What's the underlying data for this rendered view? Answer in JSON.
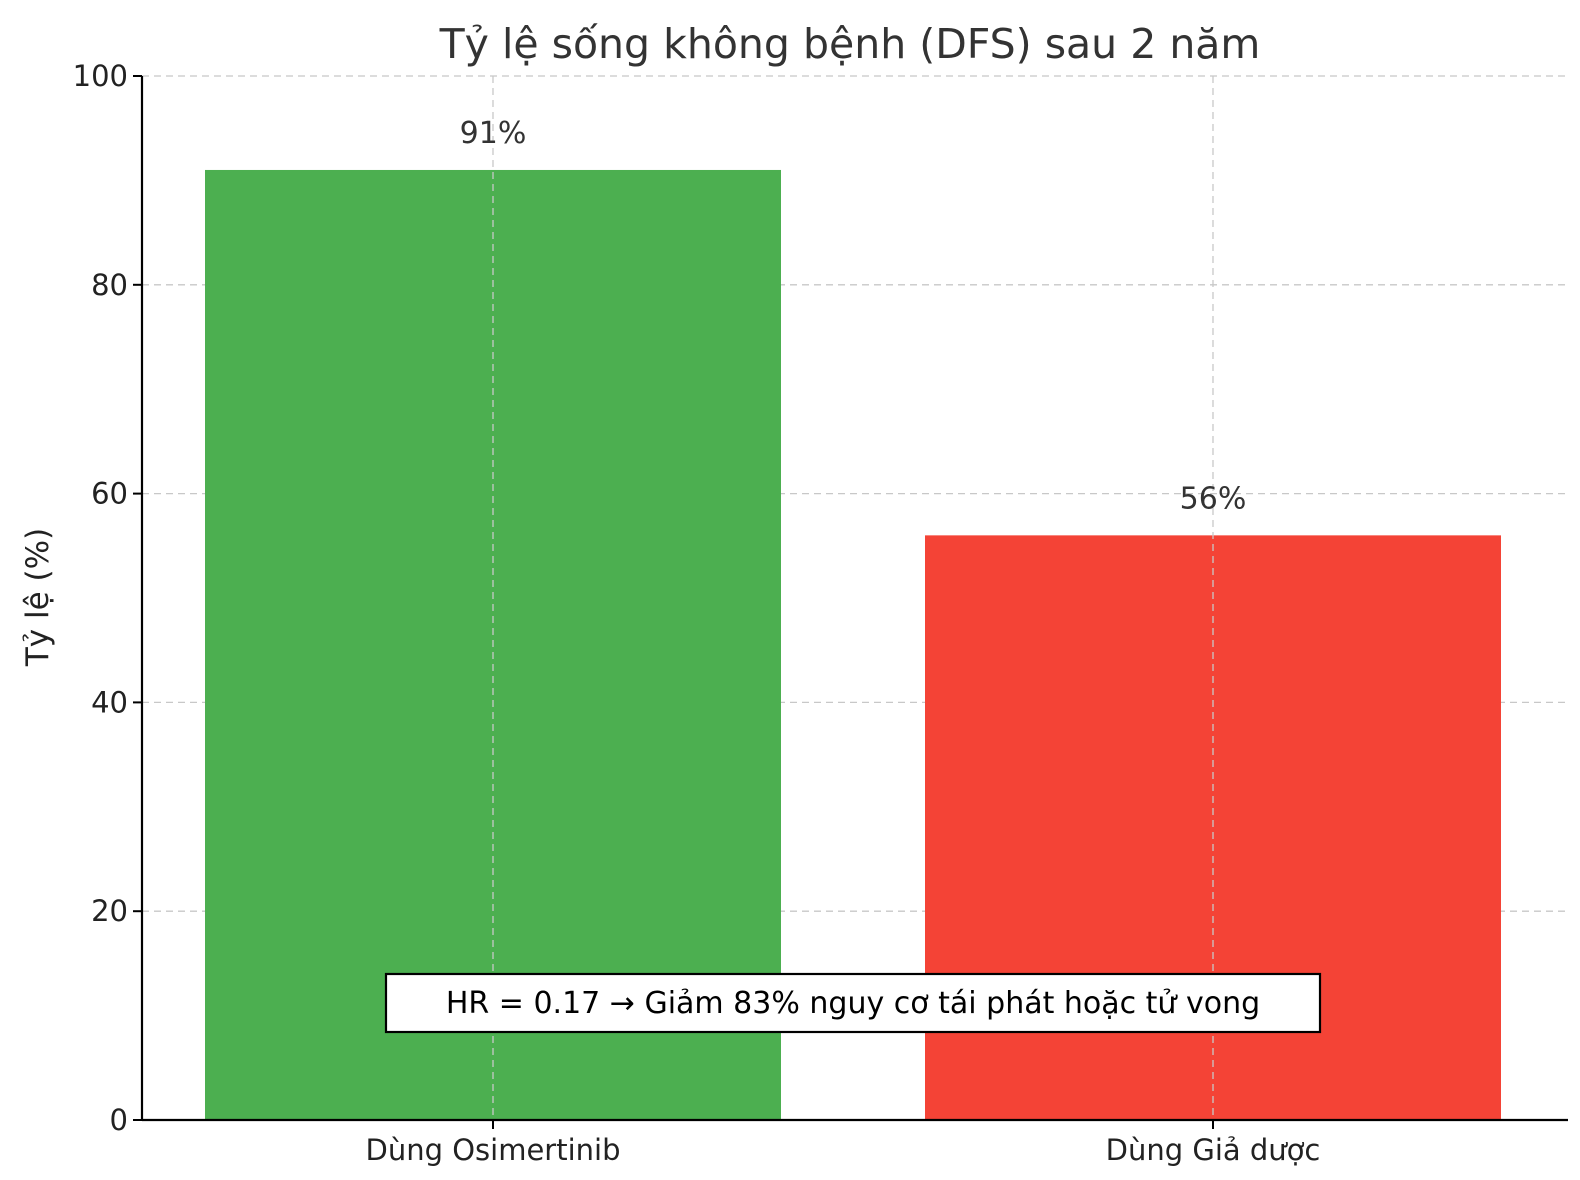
{
  "chart_data": {
    "type": "bar",
    "title": "Tỷ lệ sống không bệnh (DFS) sau 2 năm",
    "xlabel": "",
    "ylabel": "Tỷ lệ (%)",
    "categories": [
      "Dùng Osimertinib",
      "Dùng Giả dược"
    ],
    "values": [
      91,
      56
    ],
    "value_labels": [
      "91%",
      "56%"
    ],
    "colors": [
      "#4caf50",
      "#f44336"
    ],
    "ylim": [
      0,
      100
    ],
    "yticks": [
      0,
      20,
      40,
      60,
      80,
      100
    ],
    "grid": true,
    "annotation": "HR = 0.17 → Giảm 83% nguy cơ tái phát hoặc tử vong"
  }
}
